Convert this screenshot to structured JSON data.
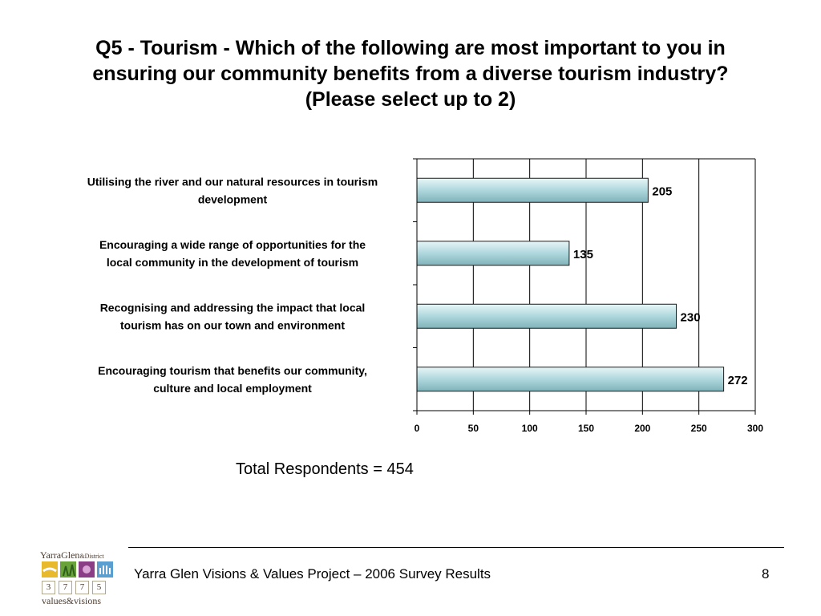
{
  "slide": {
    "title_lines": [
      "Q5 - Tourism - Which of the following are most important to you in",
      "ensuring our community benefits from a diverse tourism industry?",
      "(Please select up to 2)"
    ],
    "total_respondents": "Total Respondents = 454",
    "footer_text": "Yarra Glen Visions & Values Project – 2006 Survey Results",
    "page_number": "8"
  },
  "logo": {
    "top_text": "YarraGlen",
    "top_suffix": "&District",
    "digits": [
      "3",
      "7",
      "7",
      "5"
    ],
    "tagline": "values&visions"
  },
  "chart_data": {
    "type": "bar",
    "orientation": "horizontal",
    "categories": [
      [
        "Utilising the river and our natural resources in tourism",
        "development"
      ],
      [
        "Encouraging a wide range of opportunities for the",
        "local community in the development of tourism"
      ],
      [
        "Recognising and addressing the impact that local",
        "tourism has on our town and environment"
      ],
      [
        "Encouraging tourism that benefits our community,",
        "culture and local employment"
      ]
    ],
    "values": [
      205,
      135,
      230,
      272
    ],
    "xlim": [
      0,
      300
    ],
    "xticks": [
      0,
      50,
      100,
      150,
      200,
      250,
      300
    ],
    "grid": "vertical",
    "bar_color": "#a9d3d8"
  }
}
